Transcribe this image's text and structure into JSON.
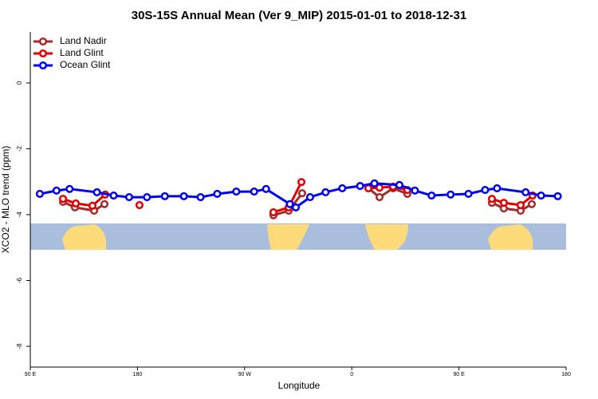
{
  "chart_data": {
    "type": "line",
    "title": "30S-15S Annual Mean (Ver 9_MIP)   2015-01-01 to 2018-12-31",
    "x_label": "Longitude",
    "y_label": "XCO2 - MLO trend (ppm)",
    "xlim": [
      90,
      540
    ],
    "xticks": [
      {
        "value": 90,
        "label": "90 E"
      },
      {
        "value": 180,
        "label": "180"
      },
      {
        "value": 270,
        "label": "90 W"
      },
      {
        "value": 360,
        "label": "0"
      },
      {
        "value": 450,
        "label": "90 E"
      },
      {
        "value": 540,
        "label": "180"
      }
    ],
    "ylim": [
      -8.63,
      1.55
    ],
    "yticks": [
      0,
      -2,
      -4,
      -6,
      -8
    ],
    "legend": "top-left",
    "series": [
      {
        "name": "Land Nadir",
        "color": "#a52a2a",
        "x": [
          117.5,
          127.5,
          143.6,
          152.3,
          null,
          294.2,
          307,
          318.3,
          null,
          373.9,
          383.3,
          394.7,
          406.7,
          null,
          477.7,
          487.7,
          501.8,
          511.2
        ],
        "values": [
          -3.61,
          -3.78,
          -3.88,
          -3.68,
          null,
          -4.02,
          -3.88,
          -3.35,
          null,
          -3.2,
          -3.47,
          -3.2,
          -3.37,
          null,
          -3.64,
          -3.81,
          -3.88,
          -3.68
        ]
      },
      {
        "name": "Land Glint",
        "color": "#e00000",
        "x": [
          117.5,
          128.2,
          142.2,
          152.9,
          null,
          181.7,
          null,
          294.2,
          307,
          317.7,
          null,
          373.9,
          383.3,
          394.7,
          406.7,
          null,
          477.7,
          487.7,
          501.8,
          511.9
        ],
        "values": [
          -3.52,
          -3.66,
          -3.73,
          -3.39,
          null,
          -3.71,
          null,
          -3.93,
          -3.78,
          -3.01,
          null,
          -3.2,
          -3.18,
          -3.15,
          -3.25,
          null,
          -3.52,
          -3.64,
          -3.71,
          -3.42
        ]
      },
      {
        "name": "Ocean Glint",
        "color": "#0000ee",
        "x": [
          98,
          112,
          123,
          146,
          160,
          173,
          188,
          203,
          219,
          233,
          247,
          263,
          278,
          288,
          308,
          313,
          325,
          338,
          352,
          367,
          379,
          400,
          413,
          427,
          443,
          458,
          472,
          482,
          506,
          519,
          533
        ],
        "values": [
          -3.37,
          -3.27,
          -3.22,
          -3.32,
          -3.42,
          -3.47,
          -3.47,
          -3.44,
          -3.44,
          -3.47,
          -3.37,
          -3.3,
          -3.3,
          -3.22,
          -3.68,
          -3.78,
          -3.47,
          -3.32,
          -3.2,
          -3.13,
          -3.05,
          -3.1,
          -3.27,
          -3.42,
          -3.39,
          -3.37,
          -3.25,
          -3.2,
          -3.32,
          -3.42,
          -3.44
        ]
      }
    ]
  }
}
